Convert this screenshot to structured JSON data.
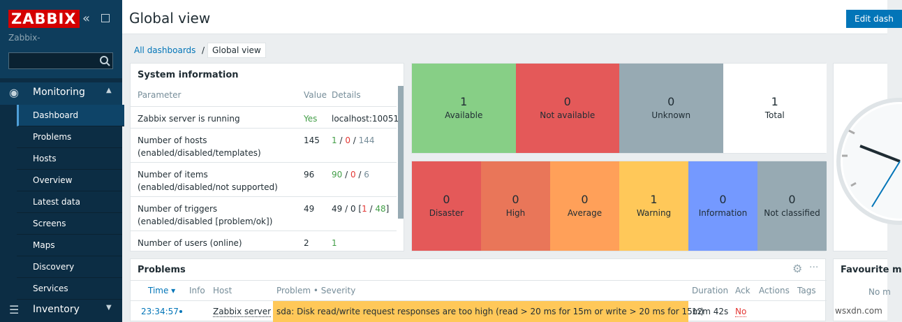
{
  "sidebar": {
    "logo": "ZABBIX",
    "server_name": "Zabbix-",
    "sections": [
      {
        "label": "Monitoring",
        "items": [
          "Dashboard",
          "Problems",
          "Hosts",
          "Overview",
          "Latest data",
          "Screens",
          "Maps",
          "Discovery",
          "Services"
        ]
      },
      {
        "label": "Inventory",
        "items": []
      }
    ]
  },
  "header": {
    "title": "Global view",
    "button": "Edit dash"
  },
  "breadcrumb": {
    "items": [
      "All dashboards",
      "Global view"
    ],
    "separator": "/"
  },
  "system_information": {
    "title": "System information",
    "columns": [
      "Parameter",
      "Value",
      "Details"
    ],
    "rows": [
      {
        "parameter": "Zabbix server is running",
        "value": "Yes",
        "details": [
          {
            "text": "localhost:10051",
            "tone": "plain"
          }
        ]
      },
      {
        "parameter": "Number of hosts (enabled/disabled/templates)",
        "value": "145",
        "details": [
          {
            "text": "1",
            "tone": "green"
          },
          {
            "text": " / ",
            "tone": "plain"
          },
          {
            "text": "0",
            "tone": "red"
          },
          {
            "text": " / ",
            "tone": "plain"
          },
          {
            "text": "144",
            "tone": "grey"
          }
        ]
      },
      {
        "parameter": "Number of items (enabled/disabled/not supported)",
        "value": "96",
        "details": [
          {
            "text": "90",
            "tone": "green"
          },
          {
            "text": " / ",
            "tone": "plain"
          },
          {
            "text": "0",
            "tone": "red"
          },
          {
            "text": " / ",
            "tone": "plain"
          },
          {
            "text": "6",
            "tone": "grey"
          }
        ]
      },
      {
        "parameter": "Number of triggers (enabled/disabled [problem/ok])",
        "value": "49",
        "details": [
          {
            "text": "49 / 0 [",
            "tone": "plain"
          },
          {
            "text": "1",
            "tone": "red"
          },
          {
            "text": " / ",
            "tone": "plain"
          },
          {
            "text": "48",
            "tone": "green"
          },
          {
            "text": "]",
            "tone": "plain"
          }
        ]
      },
      {
        "parameter": "Number of users (online)",
        "value": "2",
        "details": [
          {
            "text": "1",
            "tone": "green"
          }
        ]
      }
    ]
  },
  "host_availability": [
    {
      "count": "1",
      "label": "Available",
      "color": "#87cf86"
    },
    {
      "count": "0",
      "label": "Not available",
      "color": "#e45959"
    },
    {
      "count": "0",
      "label": "Unknown",
      "color": "#97aab3"
    },
    {
      "count": "1",
      "label": "Total",
      "color": "#ffffff"
    }
  ],
  "problems_by_severity": [
    {
      "count": "0",
      "label": "Disaster",
      "color": "#e45959"
    },
    {
      "count": "0",
      "label": "High",
      "color": "#e97659"
    },
    {
      "count": "0",
      "label": "Average",
      "color": "#ffa059"
    },
    {
      "count": "1",
      "label": "Warning",
      "color": "#ffc859"
    },
    {
      "count": "0",
      "label": "Information",
      "color": "#7499ff"
    },
    {
      "count": "0",
      "label": "Not classified",
      "color": "#97aab3"
    }
  ],
  "problems": {
    "title": "Problems",
    "columns": [
      "Time ▾",
      "Info",
      "Host",
      "Problem • Severity",
      "Duration",
      "Ack",
      "Actions",
      "Tags"
    ],
    "rows": [
      {
        "time": "23:34:57",
        "host": "Zabbix server",
        "problem": "sda: Disk read/write request responses are too high (read > 20 ms for 15m or write > 20 ms for 15m)",
        "duration": "12m 42s",
        "ack": "No"
      }
    ]
  },
  "favourite": {
    "title": "Favourite m",
    "empty": "No m"
  },
  "watermark": "wsxdn.com"
}
